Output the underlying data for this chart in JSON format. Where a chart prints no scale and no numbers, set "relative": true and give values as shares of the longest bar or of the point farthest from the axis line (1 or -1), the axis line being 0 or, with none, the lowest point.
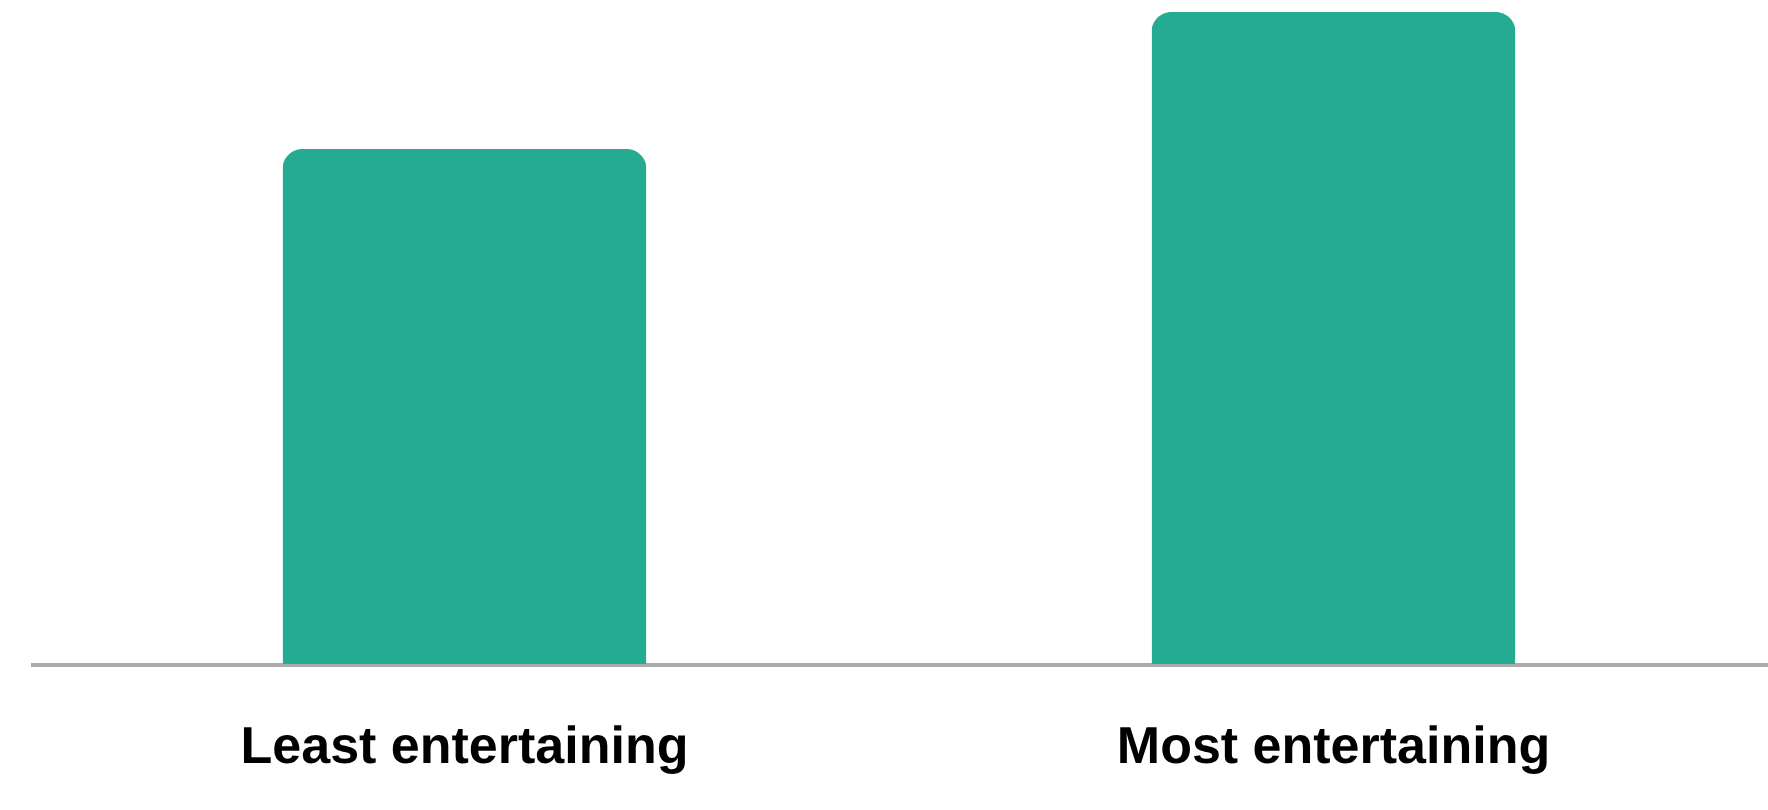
{
  "chart_data": {
    "type": "bar",
    "categories": [
      "Least entertaining",
      "Most entertaining"
    ],
    "values": [
      0.79,
      1
    ],
    "color": "#26ab93",
    "relative": true
  }
}
